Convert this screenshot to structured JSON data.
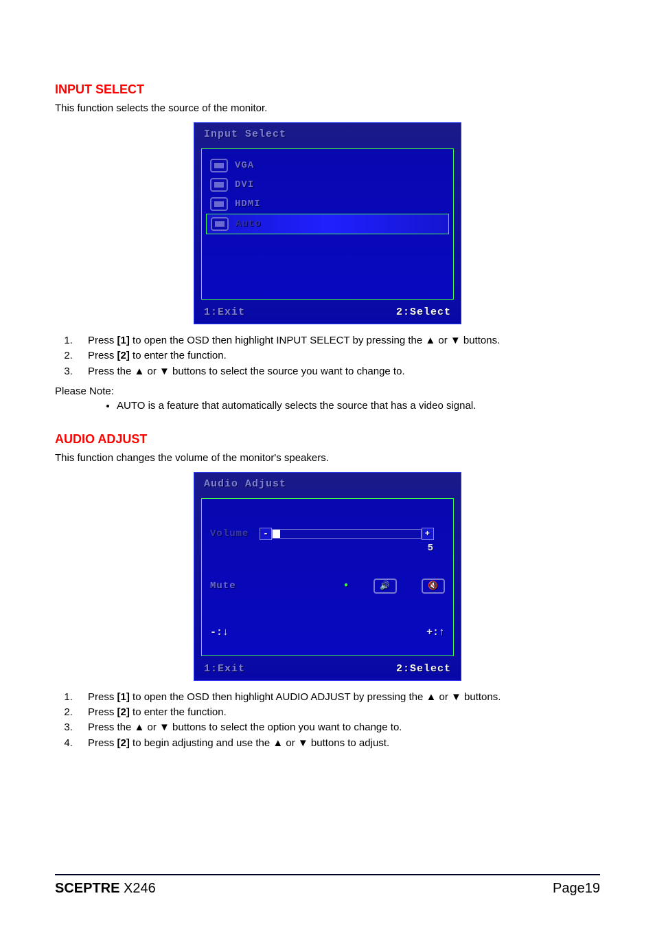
{
  "colors": {
    "heading": "#ff0000",
    "text": "#000000",
    "osd_bg_top": "#1a1a8a",
    "osd_bg_bottom": "#0808a8",
    "osd_border": "#2a3af0",
    "osd_inner_border": "#40ff40",
    "osd_label": "#8080d0",
    "osd_label_dim": "#6a6ad0",
    "osd_bright_text": "#f8f8f8"
  },
  "typography": {
    "body_fontsize_pt": 11,
    "heading_fontsize_pt": 14,
    "osd_font_family": "monospace"
  },
  "section1": {
    "title": "INPUT SELECT",
    "description": "This function selects the source of the monitor.",
    "osd": {
      "title": "Input Select",
      "items": [
        {
          "label": "VGA",
          "highlight": false
        },
        {
          "label": "DVI",
          "highlight": false
        },
        {
          "label": "HDMI",
          "highlight": false
        },
        {
          "label": "Auto",
          "highlight": true
        }
      ],
      "footer_left": "1:Exit",
      "footer_right": "2:Select"
    },
    "steps": [
      {
        "pre": "Press ",
        "key": "[1]",
        "post": " to open the OSD then highlight INPUT SELECT by pressing the ▲ or ▼ buttons."
      },
      {
        "pre": "Press ",
        "key": "[2]",
        "post": " to enter the function."
      },
      {
        "pre": "Press the ▲ or ▼ buttons to select the source you want to change to.",
        "key": "",
        "post": ""
      }
    ],
    "note_label": "Please Note:",
    "notes": [
      "AUTO is a feature that automatically selects the source that has a video signal."
    ]
  },
  "section2": {
    "title": "AUDIO ADJUST",
    "description": "This function changes the volume of the monitor's speakers.",
    "osd": {
      "title": "Audio Adjust",
      "volume_label": "Volume",
      "volume_value": 5,
      "volume_min": 0,
      "volume_max": 100,
      "slider_fill_pct": 5,
      "mute_label": "Mute",
      "hint_left": "-:↓",
      "hint_right": "+:↑",
      "footer_left": "1:Exit",
      "footer_right": "2:Select"
    },
    "steps": [
      {
        "pre": "Press ",
        "key": "[1]",
        "post": " to open the OSD then highlight AUDIO ADJUST by pressing the ▲ or ▼ buttons."
      },
      {
        "pre": "Press ",
        "key": "[2]",
        "post": " to enter the function."
      },
      {
        "pre": "Press the ▲ or ▼ buttons to select the option you want to change to.",
        "key": "",
        "post": ""
      },
      {
        "pre": "Press ",
        "key": "[2]",
        "post": " to begin adjusting and use the ▲ or ▼ buttons to adjust."
      }
    ]
  },
  "footer": {
    "brand": "SCEPTRE",
    "model": " X246",
    "page": "Page19"
  }
}
